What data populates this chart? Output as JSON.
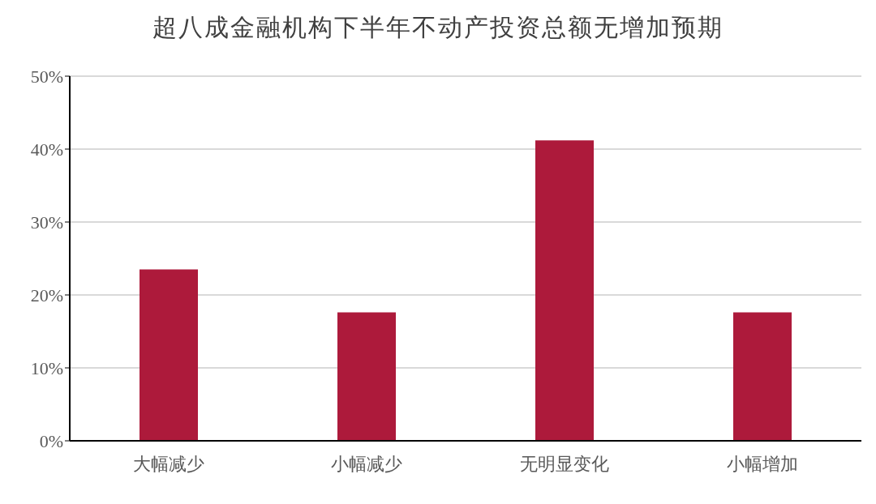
{
  "chart_data": {
    "type": "bar",
    "title": "超八成金融机构下半年不动产投资总额无增加预期",
    "categories": [
      "大幅减少",
      "小幅减少",
      "无明显变化",
      "小幅增加"
    ],
    "values": [
      23.5,
      17.6,
      41.2,
      17.6
    ],
    "color": "#ad1a3b",
    "ylim": [
      0,
      50
    ],
    "yticks": [
      {
        "value": 0,
        "label": "0%"
      },
      {
        "value": 10,
        "label": "10%"
      },
      {
        "value": 20,
        "label": "20%"
      },
      {
        "value": 30,
        "label": "30%"
      },
      {
        "value": 40,
        "label": "40%"
      },
      {
        "value": 50,
        "label": "50%"
      }
    ],
    "grid": "y"
  }
}
